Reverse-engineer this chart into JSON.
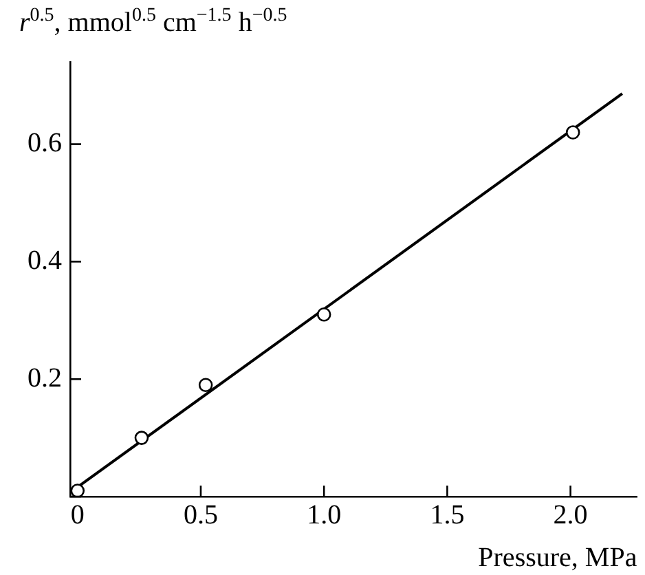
{
  "chart_data": {
    "type": "scatter",
    "ylabel": "r$^{0.5}$, mmol$^{0.5}$ cm$^{−1.5}$ h$^{−0.5}$",
    "xlabel": "Pressure, MPa",
    "xlim": [
      -0.03,
      2.27
    ],
    "ylim": [
      0,
      0.74
    ],
    "xticks": [
      {
        "value": 0,
        "label": "0"
      },
      0.5,
      {
        "value": 1,
        "label": "1.0"
      },
      1.5,
      {
        "value": 2,
        "label": "2.0"
      }
    ],
    "yticks": [
      {
        "value": 0,
        "label": null
      },
      0.2,
      0.4,
      0.6
    ],
    "grid": false,
    "legend": false,
    "series": [
      {
        "type": "scatter",
        "x": [
          0,
          0.26,
          0.52,
          1.0,
          2.01
        ],
        "values": [
          0.01,
          0.1,
          0.19,
          0.31,
          0.62
        ],
        "color": "#000000",
        "marker": "circle"
      },
      {
        "type": "line",
        "x": [
          -0.02,
          2.21
        ],
        "values": [
          0.01,
          0.686
        ],
        "color": "#000000",
        "marker": "none",
        "line_style": "solid"
      }
    ]
  }
}
